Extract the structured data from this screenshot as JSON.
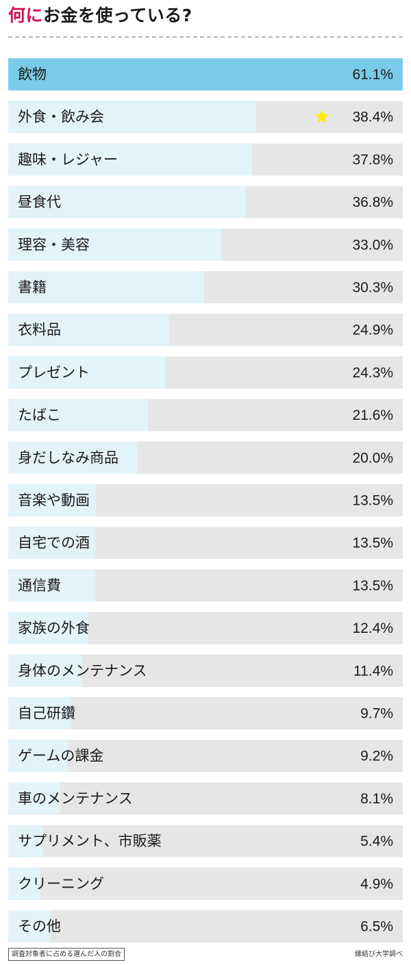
{
  "title": {
    "accent": "何に",
    "rest": "お金を使っている?"
  },
  "footnote": "調査対象者に占める選んだ人の割合",
  "source": "縁結び大学調べ",
  "colors": {
    "top_bar": "#7acbe8",
    "bar": "#e3f3fa",
    "track": "#e6e6e6",
    "title_accent": "#d0104c",
    "star": "#ffee00"
  },
  "chart_data": {
    "type": "bar",
    "orientation": "horizontal",
    "title": "何にお金を使っている?",
    "unit": "%",
    "xlim": [
      0,
      61.1
    ],
    "grid": false,
    "categories": [
      "飲物",
      "外食・飲み会",
      "趣味・レジャー",
      "昼食代",
      "理容・美容",
      "書籍",
      "衣料品",
      "プレゼント",
      "たばこ",
      "身だしなみ商品",
      "音楽や動画",
      "自宅での酒",
      "通信費",
      "家族の外食",
      "身体のメンテナンス",
      "自己研鑽",
      "ゲームの課金",
      "車のメンテナンス",
      "サプリメント、市販薬",
      "クリーニング",
      "その他"
    ],
    "values": [
      61.1,
      38.4,
      37.8,
      36.8,
      33.0,
      30.3,
      24.9,
      24.3,
      21.6,
      20.0,
      13.5,
      13.5,
      13.5,
      12.4,
      11.4,
      9.7,
      9.2,
      8.1,
      5.4,
      4.9,
      6.5
    ],
    "value_labels": [
      "61.1%",
      "38.4%",
      "37.8%",
      "36.8%",
      "33.0%",
      "30.3%",
      "24.9%",
      "24.3%",
      "21.6%",
      "20.0%",
      "13.5%",
      "13.5%",
      "13.5%",
      "12.4%",
      "11.4%",
      "9.7%",
      "9.2%",
      "8.1%",
      "5.4%",
      "4.9%",
      "6.5%"
    ],
    "highlight_index": 0,
    "star_index": 1
  }
}
